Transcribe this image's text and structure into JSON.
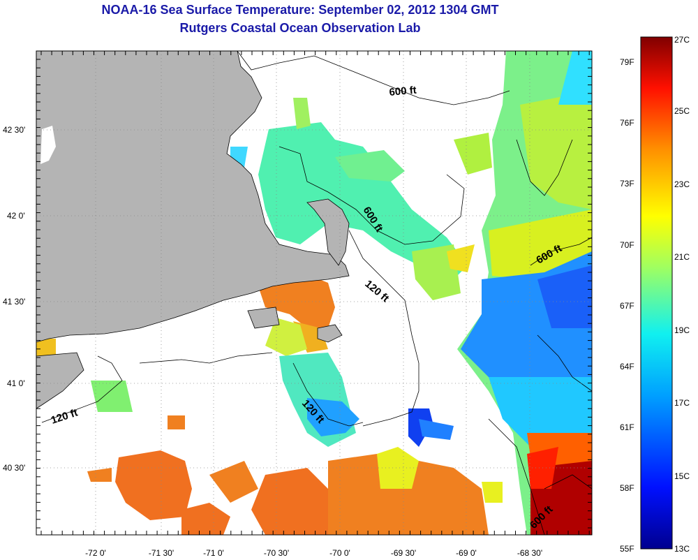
{
  "title": "NOAA-16 Sea Surface Temperature:  September 02, 2012 1304 GMT",
  "subtitle": "Rutgers Coastal Ocean Observation Lab",
  "latitude_labels": [
    "42 30'",
    "42 0'",
    "41 30'",
    "41 0'",
    "40 30'"
  ],
  "longitude_labels": [
    "-72 0'",
    "-71 30'",
    "-71 0'",
    "-70 30'",
    "-70 0'",
    "-69 30'",
    "-69 0'",
    "-68 30'"
  ],
  "depth_contours": [
    "600 ft",
    "600 ft",
    "120 ft",
    "600 ft",
    "120 ft",
    "120 ft",
    "600 ft"
  ],
  "colorbar": {
    "fahrenheit": [
      "79F",
      "76F",
      "73F",
      "70F",
      "67F",
      "64F",
      "61F",
      "58F",
      "55F"
    ],
    "celsius": [
      "27C",
      "25C",
      "23C",
      "21C",
      "19C",
      "17C",
      "15C",
      "13C"
    ]
  },
  "colors": {
    "title": "#1a1aa8",
    "land": "#b4b4b4",
    "cloud_no_data": "#ffffff"
  }
}
